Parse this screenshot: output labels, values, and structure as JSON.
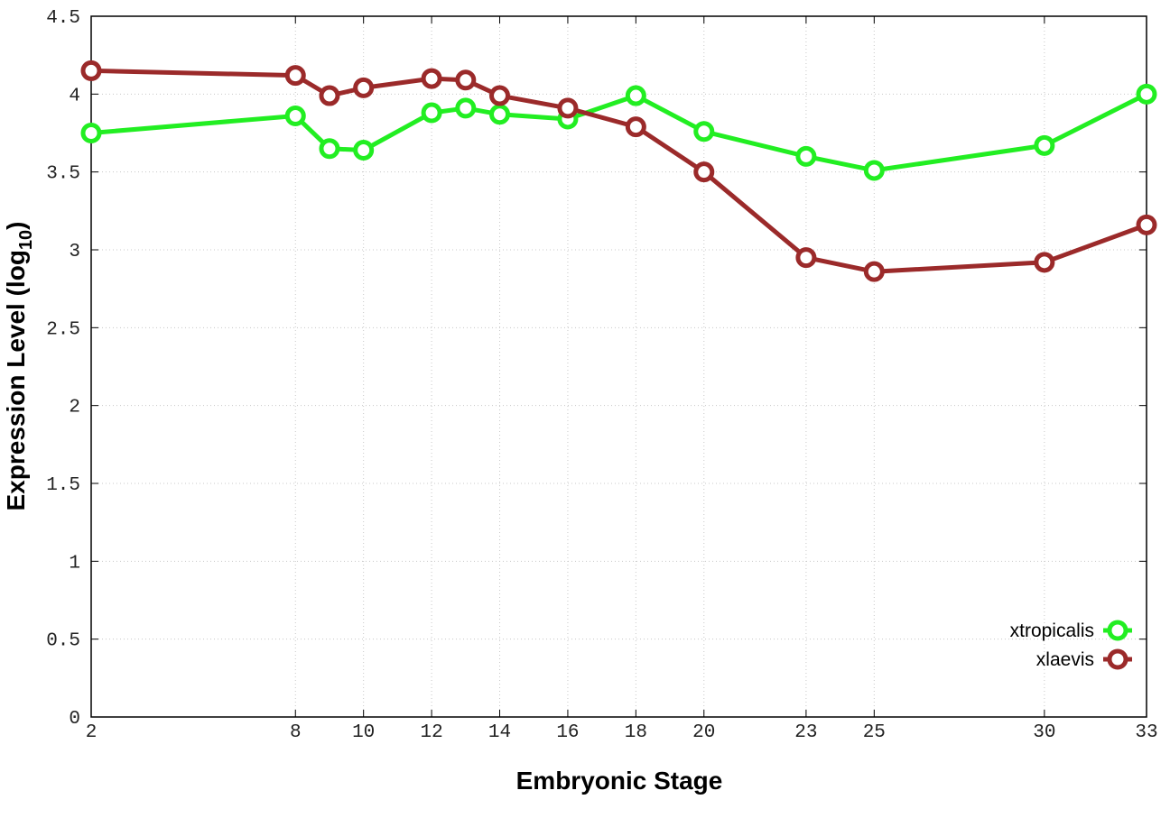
{
  "chart_data": {
    "type": "line",
    "xlabel": "Embryonic Stage",
    "ylabel": "Expression Level (log",
    "ylabel_sub": "10",
    "ylabel_close": ")",
    "x": [
      2,
      8,
      9,
      10,
      12,
      13,
      14,
      16,
      18,
      20,
      23,
      25,
      30,
      33
    ],
    "xticks": [
      2,
      8,
      10,
      12,
      14,
      16,
      18,
      20,
      23,
      25,
      30,
      33
    ],
    "xlim": [
      2,
      33
    ],
    "ylim": [
      0,
      4.5
    ],
    "yticks": [
      0,
      0.5,
      1,
      1.5,
      2,
      2.5,
      3,
      3.5,
      4,
      4.5
    ],
    "ytick_labels": [
      "0",
      "0.5",
      "1",
      "1.5",
      "2",
      "2.5",
      "3",
      "3.5",
      "4",
      "4.5"
    ],
    "grid": true,
    "legend_position": "bottom-right",
    "series": [
      {
        "name": "xtropicalis",
        "color": "#22ee22",
        "values": [
          3.75,
          3.86,
          3.65,
          3.64,
          3.88,
          3.91,
          3.87,
          3.84,
          3.99,
          3.76,
          3.6,
          3.51,
          3.67,
          4.0
        ]
      },
      {
        "name": "xlaevis",
        "color": "#9b2a2a",
        "values": [
          4.15,
          4.12,
          3.99,
          4.04,
          4.1,
          4.09,
          3.99,
          3.91,
          3.79,
          3.5,
          2.95,
          2.86,
          2.92,
          3.16
        ]
      }
    ]
  }
}
